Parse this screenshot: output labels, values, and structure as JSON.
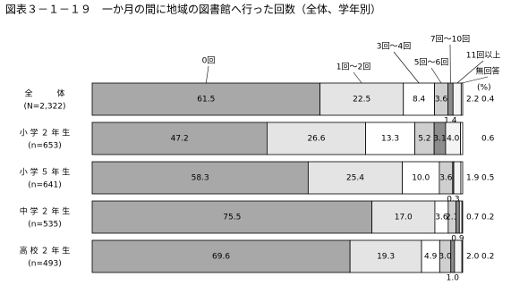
{
  "chart_data": {
    "type": "stacked_bar_100",
    "title": "図表３－１－１９　一か月の間に地域の図書館へ行った回数（全体、学年別）",
    "unit_label": "(%)",
    "categories": [
      "全　　　体",
      "小 学 ２ 年 生",
      "小 学 ５ 年 生",
      "中 学 ２ 年 生",
      "高 校 ２ 年 生"
    ],
    "sample_sizes": [
      "(N=2,322)",
      "(n=653)",
      "(n=641)",
      "(n=535)",
      "(n=493)"
    ],
    "xlim": [
      0,
      100
    ],
    "series": [
      {
        "name": "0回",
        "color": "#a8a8a8",
        "values": [
          61.5,
          47.2,
          58.3,
          75.5,
          69.6
        ]
      },
      {
        "name": "1回～2回",
        "color": "#e4e4e4",
        "values": [
          22.5,
          26.6,
          25.4,
          17.0,
          19.3
        ],
        "value_labels": [
          "22.5",
          "26.6",
          "25.4",
          "17.0",
          "19.3"
        ]
      },
      {
        "name": "3回～4回",
        "color": "#ffffff",
        "values": [
          8.4,
          13.3,
          10.0,
          3.6,
          4.9
        ],
        "value_labels": [
          "8.4",
          "13.3",
          "10.0",
          "3.6",
          "4.9"
        ]
      },
      {
        "name": "5回～6回",
        "color": "#cfcfcf",
        "values": [
          3.6,
          5.2,
          3.6,
          2.1,
          3.0
        ],
        "value_labels": [
          "3.6",
          "5.2",
          "3.6",
          "2.1",
          "3.0"
        ]
      },
      {
        "name": "7回～10回",
        "color": "#8c8c8c",
        "values": [
          1.4,
          3.1,
          0.3,
          0.9,
          1.0
        ],
        "value_labels": [
          "1.4",
          "3.1",
          "0.3",
          "0.9",
          "1.0"
        ]
      },
      {
        "name": "11回以上",
        "color": "#f4f4f4",
        "values": [
          2.2,
          4.0,
          1.9,
          0.7,
          2.0
        ],
        "value_labels": [
          "2.2",
          "4.0",
          "1.9",
          "0.7",
          "2.0"
        ]
      },
      {
        "name": "無回答",
        "color": "#ffffff",
        "values": [
          0.4,
          0.6,
          0.5,
          0.2,
          0.2
        ],
        "value_labels": [
          "0.4",
          "0.6",
          "0.5",
          "0.2",
          "0.2"
        ]
      }
    ]
  }
}
